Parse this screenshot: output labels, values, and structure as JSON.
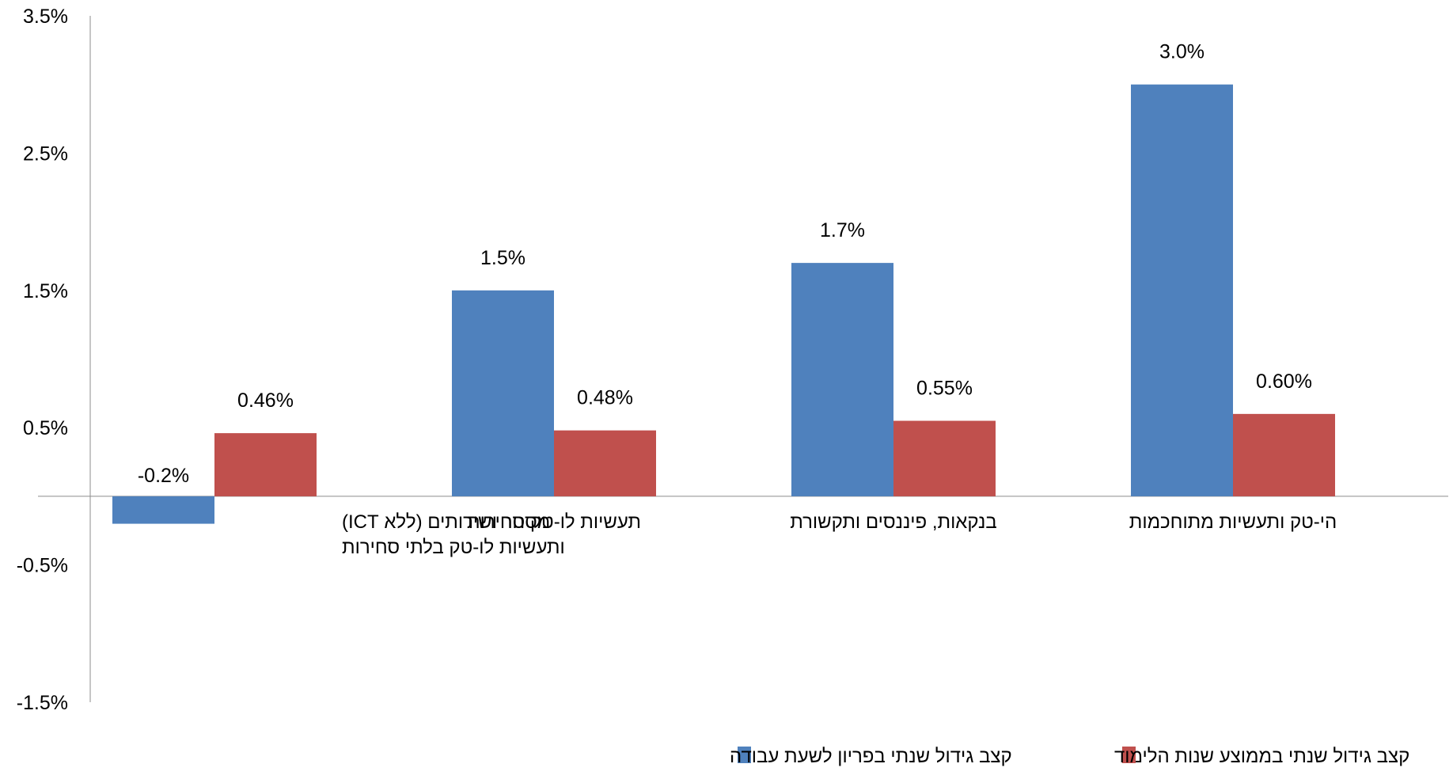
{
  "chart_data": {
    "type": "bar",
    "categories": [
      [
        "מסחר ושירותים (ללא ICT)",
        "ותעשיות לו-טק בלתי סחירות"
      ],
      [
        "תעשיות לו-טק סחירות"
      ],
      [
        "בנקאות, פיננסים ותקשורת"
      ],
      [
        "הי-טק ותעשיות מתוחכמות"
      ]
    ],
    "series": [
      {
        "name": "קצב גידול שנתי בפריון לשעת עבודה",
        "color": "#4F81BD",
        "values": [
          -0.2,
          1.5,
          1.7,
          3.0
        ],
        "labels": [
          "-0.2%",
          "1.5%",
          "1.7%",
          "3.0%"
        ]
      },
      {
        "name": "קצב גידול שנתי בממוצע שנות הלימוד",
        "color": "#C0504D",
        "values": [
          0.46,
          0.48,
          0.55,
          0.6
        ],
        "labels": [
          "0.46%",
          "0.48%",
          "0.55%",
          "0.60%"
        ]
      }
    ],
    "yticks": [
      3.5,
      2.5,
      1.5,
      0.5,
      -0.5,
      -1.5
    ],
    "ytick_labels": [
      "3.5%",
      "2.5%",
      "1.5%",
      "0.5%",
      "-0.5%",
      "-1.5%"
    ],
    "ylim": [
      -1.5,
      3.5
    ],
    "legend_position": "bottom",
    "grid": false
  }
}
